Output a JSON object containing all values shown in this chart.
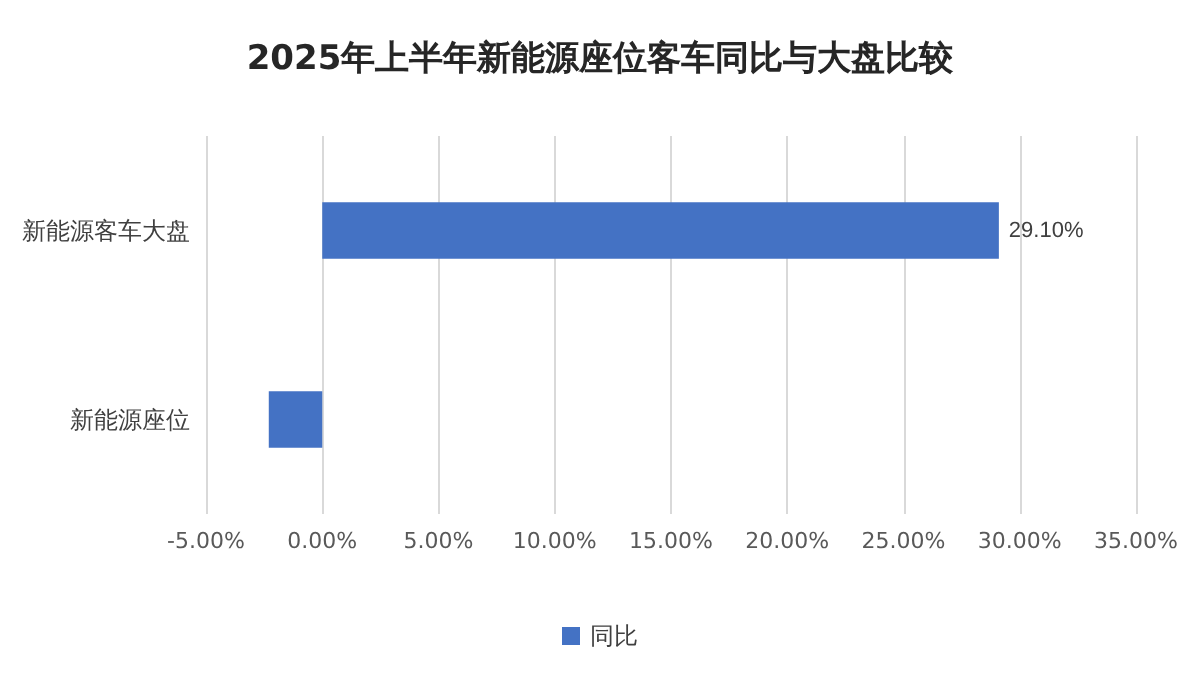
{
  "chart_data": {
    "type": "bar",
    "orientation": "horizontal",
    "title": "2025年上半年新能源座位客车同比与大盘比较",
    "categories": [
      "新能源客车大盘",
      "新能源座位"
    ],
    "series": [
      {
        "name": "同比",
        "color": "#4472c4",
        "values": [
          29.1,
          -2.3
        ],
        "value_labels": [
          "29.10%",
          null
        ]
      }
    ],
    "xlim": [
      -5,
      35
    ],
    "xticks": [
      {
        "value": -5,
        "label": "-5.00%"
      },
      {
        "value": 0,
        "label": "0.00%"
      },
      {
        "value": 5,
        "label": "5.00%"
      },
      {
        "value": 10,
        "label": "10.00%"
      },
      {
        "value": 15,
        "label": "15.00%"
      },
      {
        "value": 20,
        "label": "20.00%"
      },
      {
        "value": 25,
        "label": "25.00%"
      },
      {
        "value": 30,
        "label": "30.00%"
      },
      {
        "value": 35,
        "label": "35.00%"
      }
    ],
    "grid": "x",
    "legend": "bottom"
  }
}
